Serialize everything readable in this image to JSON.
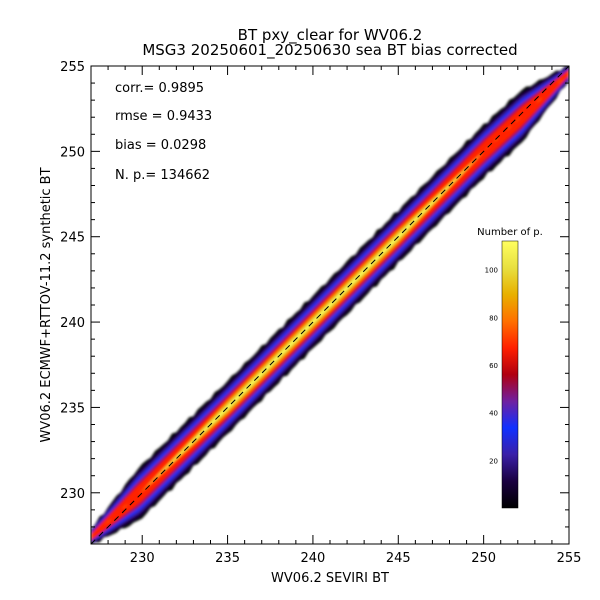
{
  "chart_data": {
    "type": "heatmap",
    "title": "BT pxy_clear for WV06.2",
    "subtitle": "MSG3 20250601_20250630 sea BT bias corrected",
    "xlabel": "WV06.2 SEVIRI BT",
    "ylabel": "WV06.2 ECMWF+RTTOV-11.2 synthetic BT",
    "xlim": [
      227,
      255
    ],
    "ylim": [
      227,
      255
    ],
    "x_ticks": [
      230,
      235,
      240,
      245,
      250,
      255
    ],
    "y_ticks": [
      230,
      235,
      240,
      245,
      250,
      255
    ],
    "x_tick_labels": [
      "230",
      "235",
      "240",
      "245",
      "250",
      "255"
    ],
    "y_tick_labels": [
      "230",
      "235",
      "240",
      "245",
      "250",
      "255"
    ],
    "density_ridge": [
      [
        227,
        227.4
      ],
      [
        230,
        230.1
      ],
      [
        235,
        235.0
      ],
      [
        240,
        240.0
      ],
      [
        245,
        245.0
      ],
      [
        250,
        250.0
      ],
      [
        255,
        254.6
      ]
    ],
    "one_to_one_line": true,
    "stats": {
      "corr": "corr.= 0.9895",
      "rmse": "rmse = 0.9433",
      "bias": "bias = 0.0298",
      "npoints": "N. p.=  134662"
    },
    "colorbar": {
      "title": "Number of p.",
      "range": [
        0,
        112
      ],
      "ticks": [
        20,
        40,
        60,
        80,
        100
      ],
      "tick_labels": [
        "20",
        "40",
        "60",
        "80",
        "100"
      ],
      "colormap": [
        "#000000",
        "#1a0040",
        "#3a1fa8",
        "#1030ff",
        "#7020a0",
        "#b00010",
        "#ff2000",
        "#ff7000",
        "#e8b000",
        "#e8e040",
        "#ffff60"
      ]
    },
    "grid": false
  }
}
